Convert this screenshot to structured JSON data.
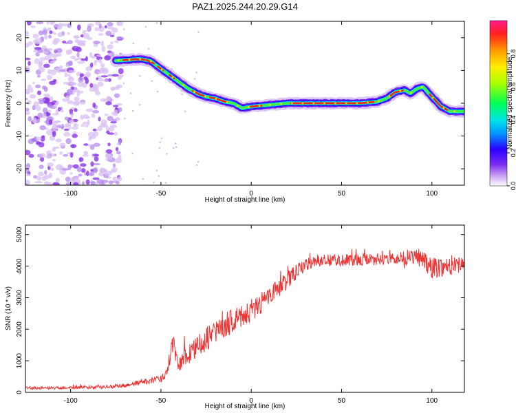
{
  "title": "PAZ1.2025.244.20.29.G14",
  "colors": {
    "snr_line": "#ee3333",
    "ridge": "#ff2020",
    "noise_light": "#d9c2f2",
    "noise_dark": "#8a35e6",
    "axis": "#000000"
  },
  "chart_data": [
    {
      "name": "spectrogram",
      "type": "heatmap",
      "xlabel": "Height of straight line (km)",
      "ylabel": "Frequency (Hz)",
      "xlim": [
        -125,
        118
      ],
      "ylim": [
        -25,
        25
      ],
      "xticks": [
        -100,
        -50,
        0,
        50,
        100
      ],
      "xtick_labels": [
        "-100",
        "-50",
        "0",
        "50",
        "100"
      ],
      "yticks": [
        -20,
        -10,
        0,
        10,
        20
      ],
      "ytick_labels": [
        "-20",
        "-10",
        "0",
        "10",
        "20"
      ],
      "noise_region_x": [
        -125,
        -72
      ],
      "ridge": {
        "x": [
          -75,
          -62,
          -56,
          -50,
          -45,
          -40,
          -35,
          -30,
          -25,
          -20,
          -15,
          -10,
          -5,
          0,
          10,
          20,
          30,
          40,
          50,
          60,
          70,
          75,
          80,
          85,
          88,
          92,
          95,
          100,
          105,
          110,
          118
        ],
        "y": [
          13,
          13.5,
          13,
          10.5,
          8.5,
          6.5,
          4.5,
          3,
          2,
          1.5,
          0.5,
          0,
          -1.5,
          -1,
          -0.5,
          0,
          0,
          0,
          0,
          0,
          0.5,
          1.5,
          3.5,
          4,
          3,
          4.5,
          5,
          2,
          -1,
          -2.5,
          -2.5
        ]
      },
      "colorbar": {
        "label": "Normalized spectral amplitude",
        "range": [
          0,
          1
        ],
        "ticks": [
          0.0,
          0.2,
          0.4,
          0.6,
          0.8
        ],
        "tick_labels": [
          "0.0",
          "0.2",
          "0.4",
          "0.6",
          "0.8"
        ]
      }
    },
    {
      "name": "snr",
      "type": "line",
      "xlabel": "Height of straight line (km)",
      "ylabel": "SNR (10 * v/v)",
      "xlim": [
        -125,
        118
      ],
      "ylim": [
        0,
        5300
      ],
      "xticks": [
        -100,
        -50,
        0,
        50,
        100
      ],
      "xtick_labels": [
        "-100",
        "-50",
        "0",
        "50",
        "100"
      ],
      "yticks": [
        0,
        1000,
        2000,
        3000,
        4000,
        5000
      ],
      "ytick_labels": [
        "0",
        "1000",
        "2000",
        "3000",
        "4000",
        "5000"
      ],
      "series": [
        {
          "name": "SNR",
          "x": [
            -125,
            -110,
            -100,
            -90,
            -80,
            -72,
            -68,
            -65,
            -60,
            -55,
            -50,
            -47,
            -45,
            -43,
            -42,
            -40,
            -38,
            -35,
            -30,
            -25,
            -20,
            -15,
            -10,
            -5,
            0,
            5,
            10,
            15,
            20,
            25,
            28,
            30,
            35,
            40,
            50,
            60,
            70,
            80,
            90,
            95,
            100,
            110,
            118
          ],
          "values": [
            140,
            140,
            150,
            160,
            170,
            200,
            230,
            270,
            330,
            380,
            420,
            600,
            1200,
            1700,
            1100,
            900,
            1000,
            1200,
            1400,
            1700,
            1900,
            2100,
            2300,
            2400,
            2600,
            2800,
            3050,
            3300,
            3550,
            3800,
            3950,
            4050,
            4150,
            4200,
            4200,
            4200,
            4200,
            4250,
            4300,
            4250,
            3950,
            4000,
            4100
          ],
          "noise": [
            50,
            50,
            50,
            50,
            55,
            60,
            70,
            80,
            90,
            100,
            120,
            150,
            300,
            350,
            250,
            250,
            300,
            350,
            350,
            400,
            400,
            400,
            400,
            380,
            350,
            350,
            330,
            300,
            280,
            250,
            220,
            220,
            200,
            200,
            200,
            200,
            200,
            200,
            280,
            300,
            350,
            300,
            250
          ]
        }
      ]
    }
  ]
}
